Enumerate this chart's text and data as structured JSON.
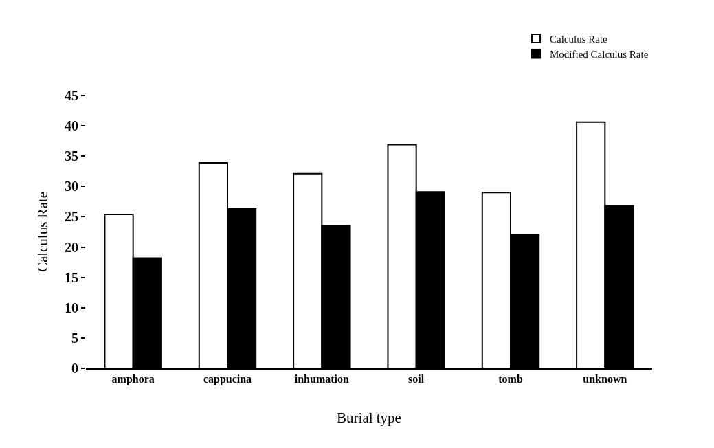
{
  "chart_data": {
    "type": "bar",
    "xlabel": "Burial type",
    "ylabel": "Calculus Rate",
    "categories": [
      "amphora",
      "cappucina",
      "inhumation",
      "soil",
      "tomb",
      "unknown"
    ],
    "series": [
      {
        "name": "Calculus Rate",
        "color": "#ffffff",
        "values": [
          25.4,
          33.9,
          32.1,
          36.9,
          29.0,
          40.6
        ]
      },
      {
        "name": "Modified Calculus Rate",
        "color": "#000000",
        "values": [
          18.2,
          26.3,
          23.5,
          29.1,
          22.0,
          26.8
        ]
      }
    ],
    "ylim": [
      0,
      45
    ],
    "yticks": [
      0,
      5,
      10,
      15,
      20,
      25,
      30,
      35,
      40,
      45
    ],
    "grid": false,
    "legend": "top right"
  }
}
